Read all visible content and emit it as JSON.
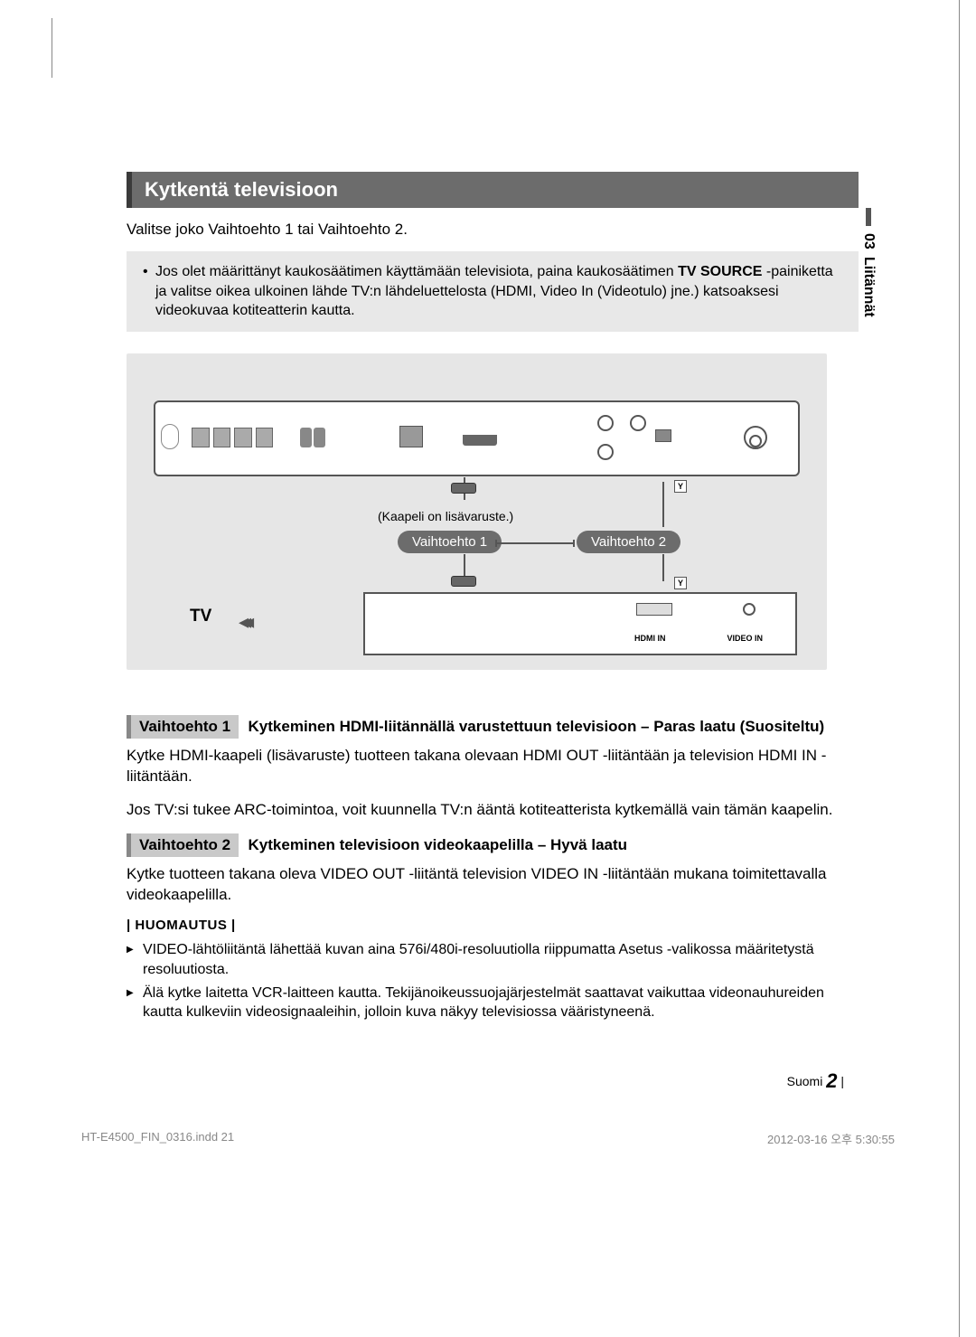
{
  "sideTab": {
    "chapter": "03",
    "title": "Liitännät"
  },
  "header": "Kytkentä televisioon",
  "intro": "Valitse joko Vaihtoehto 1 tai Vaihtoehto 2.",
  "introNote": {
    "pre": "Jos olet määrittänyt kaukosäätimen käyttämään televisiota, paina kaukosäätimen ",
    "bold": "TV SOURCE",
    "post": " -painiketta ja valitse oikea ulkoinen lähde TV:n lähdeluettelosta (HDMI, Video In (Videotulo) jne.) katsoaksesi videokuvaa kotiteatterin kautta."
  },
  "diagram": {
    "cableNote": "(Kaapeli on lisävaruste.)",
    "opt1": "Vaihtoehto 1",
    "opt2": "Vaihtoehto 2",
    "tvLabel": "TV",
    "hdmiIn": "HDMI IN",
    "videoIn": "VIDEO IN",
    "y": "Y"
  },
  "opt1": {
    "badge": "Vaihtoehto 1",
    "title": "Kytkeminen HDMI-liitännällä varustettuun televisioon – Paras laatu (Suositeltu)",
    "p1": "Kytke HDMI-kaapeli (lisävaruste) tuotteen takana olevaan HDMI OUT -liitäntään ja television HDMI IN -liitäntään.",
    "p2": "Jos TV:si tukee ARC-toimintoa, voit kuunnella TV:n ääntä kotiteatterista kytkemällä vain tämän kaapelin."
  },
  "opt2": {
    "badge": "Vaihtoehto 2",
    "title": "Kytkeminen televisioon videokaapelilla – Hyvä laatu",
    "p1": "Kytke tuotteen takana oleva VIDEO OUT -liitäntä television VIDEO IN -liitäntään mukana toimitettavalla videokaapelilla."
  },
  "notice": {
    "head": "| HUOMAUTUS |",
    "items": [
      "VIDEO-lähtöliitäntä lähettää kuvan aina 576i/480i-resoluutiolla riippumatta Asetus -valikossa määritetystä resoluutiosta.",
      "Älä kytke laitetta VCR-laitteen kautta. Tekijänoikeussuojajärjestelmät saattavat vaikuttaa videonauhureiden kautta kulkeviin videosignaaleihin, jolloin kuva näkyy televisiossa vääristyneenä."
    ]
  },
  "footer": {
    "lang": "Suomi",
    "page": "2"
  },
  "printFooter": {
    "file": "HT-E4500_FIN_0316.indd   21",
    "date": "2012-03-16   오후 5:30:55"
  }
}
